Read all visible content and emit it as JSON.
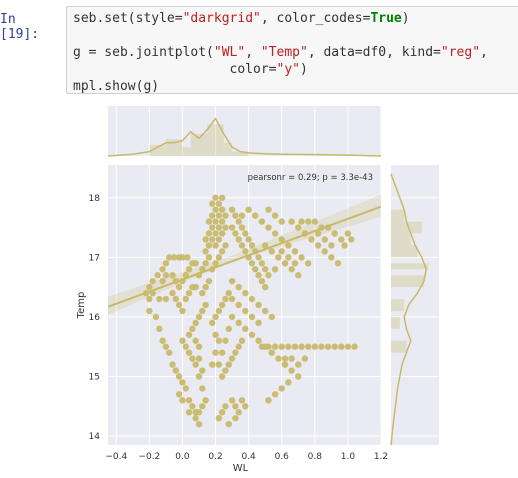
{
  "cell": {
    "prompt": "In [19]:",
    "code_lines": [
      [
        [
          "p",
          "seb.set(style="
        ],
        [
          "s",
          "\"darkgrid\""
        ],
        [
          "p",
          ", color_codes="
        ],
        [
          "k",
          "True"
        ],
        [
          "p",
          ")"
        ]
      ],
      [],
      [
        [
          "p",
          "g = seb.jointplot("
        ],
        [
          "s",
          "\"WL\""
        ],
        [
          "p",
          ", "
        ],
        [
          "s",
          "\"Temp\""
        ],
        [
          "p",
          ", data=df0, kind="
        ],
        [
          "s",
          "\"reg\""
        ],
        [
          "p",
          ","
        ]
      ],
      [
        [
          "p",
          "                    color="
        ],
        [
          "s",
          "\"y\""
        ],
        [
          "p",
          ")"
        ]
      ],
      [
        [
          "p",
          "mpl.show(g)"
        ]
      ]
    ]
  },
  "chart_data": {
    "type": "scatter",
    "kind": "reg",
    "xlabel": "WL",
    "ylabel": "Temp",
    "xlim": [
      -0.45,
      1.2
    ],
    "ylim": [
      13.85,
      18.55
    ],
    "xticks": [
      -0.4,
      -0.2,
      0.0,
      0.2,
      0.4,
      0.6,
      0.8,
      1.0,
      1.2
    ],
    "xtick_labels": [
      "−0.4",
      "−0.2",
      "0.0",
      "0.2",
      "0.4",
      "0.6",
      "0.8",
      "1.0",
      "1.2"
    ],
    "yticks": [
      14,
      15,
      16,
      17,
      18
    ],
    "ytick_labels": [
      "14",
      "15",
      "16",
      "17",
      "18"
    ],
    "annotation": "pearsonr = 0.29; p = 3.3e-43",
    "regression": {
      "x": [
        -0.45,
        1.2
      ],
      "y": [
        16.17,
        17.85
      ]
    },
    "color": "#c8b96a",
    "background": "#eaeaf2",
    "grid": true,
    "marginal_x_hist": [
      {
        "x0": -0.2,
        "x1": -0.1,
        "h": 0.25
      },
      {
        "x0": -0.1,
        "x1": 0.0,
        "h": 0.38
      },
      {
        "x0": 0.0,
        "x1": 0.05,
        "h": 0.2
      },
      {
        "x0": 0.05,
        "x1": 0.15,
        "h": 0.5
      },
      {
        "x0": 0.15,
        "x1": 0.25,
        "h": 0.72
      },
      {
        "x0": 0.25,
        "x1": 0.3,
        "h": 0.3
      },
      {
        "x0": 0.3,
        "x1": 0.4,
        "h": 0.1
      }
    ],
    "marginal_x_kde": {
      "x": [
        -0.45,
        -0.3,
        -0.2,
        -0.15,
        -0.1,
        -0.05,
        0.0,
        0.05,
        0.1,
        0.15,
        0.2,
        0.25,
        0.3,
        0.35,
        0.4,
        0.5,
        0.6,
        0.8,
        1.0,
        1.2
      ],
      "y": [
        0.0,
        0.04,
        0.1,
        0.2,
        0.3,
        0.3,
        0.35,
        0.55,
        0.4,
        0.6,
        0.85,
        0.5,
        0.2,
        0.1,
        0.07,
        0.05,
        0.04,
        0.03,
        0.02,
        0.0
      ]
    },
    "marginal_y_hist": [
      {
        "y0": 17.6,
        "y1": 17.8,
        "w": 0.3
      },
      {
        "y0": 17.4,
        "y1": 17.6,
        "w": 0.7
      },
      {
        "y0": 17.2,
        "y1": 17.4,
        "w": 0.45
      },
      {
        "y0": 17.0,
        "y1": 17.2,
        "w": 0.6
      },
      {
        "y0": 16.8,
        "y1": 16.9,
        "w": 0.85
      },
      {
        "y0": 16.5,
        "y1": 16.7,
        "w": 0.75
      },
      {
        "y0": 16.1,
        "y1": 16.3,
        "w": 0.3
      },
      {
        "y0": 15.8,
        "y1": 16.0,
        "w": 0.2
      },
      {
        "y0": 15.4,
        "y1": 15.6,
        "w": 0.35
      }
    ],
    "marginal_y_kde": {
      "y": [
        18.4,
        18.2,
        18.0,
        17.8,
        17.6,
        17.4,
        17.2,
        17.0,
        16.8,
        16.6,
        16.4,
        16.2,
        16.0,
        15.8,
        15.6,
        15.4,
        15.2,
        15.0,
        14.8,
        14.5,
        14.2,
        13.85
      ],
      "x": [
        0.0,
        0.1,
        0.2,
        0.3,
        0.35,
        0.45,
        0.55,
        0.7,
        0.8,
        0.75,
        0.6,
        0.4,
        0.3,
        0.35,
        0.45,
        0.35,
        0.25,
        0.2,
        0.15,
        0.1,
        0.05,
        0.0
      ]
    },
    "points": [
      [
        -0.22,
        16.4
      ],
      [
        -0.2,
        16.5
      ],
      [
        -0.18,
        16.6
      ],
      [
        -0.15,
        16.7
      ],
      [
        -0.12,
        16.8
      ],
      [
        -0.1,
        16.9
      ],
      [
        -0.08,
        17.0
      ],
      [
        -0.05,
        17.0
      ],
      [
        -0.02,
        17.0
      ],
      [
        0.0,
        17.0
      ],
      [
        0.03,
        17.0
      ],
      [
        -0.2,
        16.3
      ],
      [
        -0.18,
        16.4
      ],
      [
        -0.14,
        16.3
      ],
      [
        -0.1,
        16.3
      ],
      [
        -0.06,
        16.4
      ],
      [
        -0.02,
        16.5
      ],
      [
        0.0,
        16.6
      ],
      [
        0.02,
        16.7
      ],
      [
        0.04,
        16.8
      ],
      [
        0.06,
        16.9
      ],
      [
        0.08,
        16.9
      ],
      [
        -0.12,
        16.6
      ],
      [
        -0.1,
        16.7
      ],
      [
        -0.06,
        16.7
      ],
      [
        -0.04,
        16.6
      ],
      [
        -0.04,
        16.3
      ],
      [
        -0.02,
        16.2
      ],
      [
        0.0,
        16.1
      ],
      [
        0.02,
        16.3
      ],
      [
        0.04,
        16.4
      ],
      [
        0.06,
        16.5
      ],
      [
        0.08,
        16.5
      ],
      [
        -0.2,
        16.1
      ],
      [
        -0.16,
        16.0
      ],
      [
        -0.14,
        15.8
      ],
      [
        -0.12,
        15.6
      ],
      [
        -0.1,
        15.5
      ],
      [
        -0.08,
        15.4
      ],
      [
        -0.06,
        15.2
      ],
      [
        -0.04,
        15.1
      ],
      [
        -0.02,
        15.0
      ],
      [
        0.0,
        14.9
      ],
      [
        0.02,
        14.8
      ],
      [
        0.04,
        14.6
      ],
      [
        0.06,
        14.5
      ],
      [
        0.08,
        14.4
      ],
      [
        0.1,
        14.2
      ],
      [
        -0.02,
        14.7
      ],
      [
        0.0,
        14.6
      ],
      [
        0.04,
        14.4
      ],
      [
        0.08,
        14.3
      ],
      [
        0.1,
        14.4
      ],
      [
        0.12,
        14.5
      ],
      [
        0.14,
        14.6
      ],
      [
        0.12,
        14.8
      ],
      [
        0.12,
        15.1
      ],
      [
        0.1,
        15.3
      ],
      [
        0.1,
        15.5
      ],
      [
        0.08,
        15.6
      ],
      [
        0.0,
        15.6
      ],
      [
        0.02,
        15.5
      ],
      [
        0.04,
        15.4
      ],
      [
        0.06,
        15.3
      ],
      [
        0.08,
        15.2
      ],
      [
        0.1,
        15.0
      ],
      [
        0.04,
        15.7
      ],
      [
        0.06,
        15.8
      ],
      [
        0.08,
        15.9
      ],
      [
        0.1,
        16.0
      ],
      [
        0.12,
        16.1
      ],
      [
        0.14,
        16.2
      ],
      [
        0.12,
        16.4
      ],
      [
        0.14,
        16.5
      ],
      [
        0.16,
        16.6
      ],
      [
        0.18,
        16.8
      ],
      [
        0.2,
        16.9
      ],
      [
        0.22,
        17.0
      ],
      [
        0.24,
        17.1
      ],
      [
        0.26,
        17.2
      ],
      [
        0.16,
        17.0
      ],
      [
        0.14,
        16.9
      ],
      [
        0.12,
        16.8
      ],
      [
        0.1,
        16.7
      ],
      [
        0.14,
        17.3
      ],
      [
        0.16,
        17.4
      ],
      [
        0.18,
        17.5
      ],
      [
        0.2,
        17.6
      ],
      [
        0.22,
        17.7
      ],
      [
        0.24,
        17.8
      ],
      [
        0.16,
        17.6
      ],
      [
        0.18,
        17.7
      ],
      [
        0.2,
        17.8
      ],
      [
        0.22,
        17.5
      ],
      [
        0.2,
        17.4
      ],
      [
        0.18,
        17.3
      ],
      [
        0.16,
        17.2
      ],
      [
        0.14,
        17.1
      ],
      [
        0.2,
        17.2
      ],
      [
        0.22,
        17.3
      ],
      [
        0.24,
        17.4
      ],
      [
        0.26,
        17.5
      ],
      [
        0.24,
        17.6
      ],
      [
        0.26,
        17.7
      ],
      [
        0.22,
        17.9
      ],
      [
        0.18,
        17.9
      ],
      [
        0.2,
        18.0
      ],
      [
        0.24,
        18.0
      ],
      [
        0.3,
        17.8
      ],
      [
        0.32,
        17.7
      ],
      [
        0.34,
        17.6
      ],
      [
        0.36,
        17.5
      ],
      [
        0.38,
        17.4
      ],
      [
        0.4,
        17.3
      ],
      [
        0.42,
        17.2
      ],
      [
        0.44,
        17.1
      ],
      [
        0.46,
        17.0
      ],
      [
        0.48,
        16.9
      ],
      [
        0.5,
        16.8
      ],
      [
        0.3,
        17.5
      ],
      [
        0.32,
        17.4
      ],
      [
        0.34,
        17.3
      ],
      [
        0.36,
        17.2
      ],
      [
        0.38,
        17.1
      ],
      [
        0.4,
        17.0
      ],
      [
        0.42,
        16.9
      ],
      [
        0.44,
        16.8
      ],
      [
        0.46,
        16.7
      ],
      [
        0.48,
        16.6
      ],
      [
        0.5,
        16.5
      ],
      [
        0.36,
        17.7
      ],
      [
        0.4,
        17.8
      ],
      [
        0.44,
        17.7
      ],
      [
        0.48,
        17.6
      ],
      [
        0.52,
        17.5
      ],
      [
        0.56,
        17.4
      ],
      [
        0.6,
        17.3
      ],
      [
        0.64,
        17.2
      ],
      [
        0.68,
        17.1
      ],
      [
        0.72,
        17.0
      ],
      [
        0.76,
        16.9
      ],
      [
        0.52,
        17.8
      ],
      [
        0.56,
        17.7
      ],
      [
        0.6,
        17.6
      ],
      [
        0.66,
        17.6
      ],
      [
        0.7,
        17.5
      ],
      [
        0.74,
        17.4
      ],
      [
        0.78,
        17.3
      ],
      [
        0.82,
        17.2
      ],
      [
        0.86,
        17.1
      ],
      [
        0.9,
        17.0
      ],
      [
        0.94,
        16.9
      ],
      [
        0.72,
        17.6
      ],
      [
        0.76,
        17.6
      ],
      [
        0.8,
        17.6
      ],
      [
        0.84,
        17.5
      ],
      [
        0.88,
        17.5
      ],
      [
        0.92,
        17.4
      ],
      [
        0.96,
        17.3
      ],
      [
        0.82,
        17.4
      ],
      [
        0.86,
        17.3
      ],
      [
        0.9,
        17.2
      ],
      [
        0.5,
        17.2
      ],
      [
        0.54,
        17.1
      ],
      [
        0.58,
        17.0
      ],
      [
        0.62,
        16.9
      ],
      [
        0.66,
        16.8
      ],
      [
        0.7,
        16.7
      ],
      [
        0.6,
        17.1
      ],
      [
        0.64,
        17.0
      ],
      [
        0.68,
        16.9
      ],
      [
        0.56,
        16.8
      ],
      [
        0.52,
        16.7
      ],
      [
        0.3,
        16.6
      ],
      [
        0.34,
        16.5
      ],
      [
        0.38,
        16.4
      ],
      [
        0.42,
        16.3
      ],
      [
        0.46,
        16.2
      ],
      [
        0.5,
        16.1
      ],
      [
        0.54,
        16.0
      ],
      [
        0.3,
        16.3
      ],
      [
        0.34,
        16.2
      ],
      [
        0.38,
        16.1
      ],
      [
        0.42,
        16.0
      ],
      [
        0.46,
        15.9
      ],
      [
        0.3,
        16.0
      ],
      [
        0.34,
        15.9
      ],
      [
        0.38,
        15.8
      ],
      [
        0.42,
        15.7
      ],
      [
        0.46,
        15.6
      ],
      [
        0.5,
        15.5
      ],
      [
        0.54,
        15.4
      ],
      [
        0.58,
        15.3
      ],
      [
        0.62,
        15.2
      ],
      [
        0.66,
        15.1
      ],
      [
        0.7,
        15.0
      ],
      [
        0.48,
        15.5
      ],
      [
        0.52,
        15.5
      ],
      [
        0.56,
        15.5
      ],
      [
        0.6,
        15.5
      ],
      [
        0.64,
        15.5
      ],
      [
        0.68,
        15.5
      ],
      [
        0.72,
        15.5
      ],
      [
        0.76,
        15.5
      ],
      [
        0.8,
        15.5
      ],
      [
        0.84,
        15.5
      ],
      [
        0.88,
        15.5
      ],
      [
        0.92,
        15.5
      ],
      [
        0.96,
        15.5
      ],
      [
        1.0,
        15.5
      ],
      [
        1.04,
        15.5
      ],
      [
        0.62,
        15.3
      ],
      [
        0.66,
        15.3
      ],
      [
        0.7,
        15.2
      ],
      [
        0.74,
        15.3
      ],
      [
        0.64,
        14.9
      ],
      [
        0.6,
        14.8
      ],
      [
        0.56,
        14.7
      ],
      [
        0.52,
        14.6
      ],
      [
        0.3,
        14.6
      ],
      [
        0.32,
        14.5
      ],
      [
        0.34,
        14.4
      ],
      [
        0.36,
        14.6
      ],
      [
        0.38,
        14.5
      ],
      [
        0.26,
        14.5
      ],
      [
        0.24,
        14.4
      ],
      [
        0.22,
        14.3
      ],
      [
        0.28,
        14.2
      ],
      [
        0.32,
        14.3
      ],
      [
        0.24,
        15.0
      ],
      [
        0.26,
        15.1
      ],
      [
        0.28,
        15.2
      ],
      [
        0.3,
        15.3
      ],
      [
        0.32,
        15.4
      ],
      [
        0.34,
        15.5
      ],
      [
        0.36,
        15.6
      ],
      [
        0.22,
        15.2
      ],
      [
        0.24,
        15.4
      ],
      [
        0.26,
        15.6
      ],
      [
        0.28,
        15.8
      ],
      [
        0.18,
        15.9
      ],
      [
        0.2,
        16.0
      ],
      [
        0.22,
        16.1
      ],
      [
        0.24,
        16.2
      ],
      [
        0.26,
        16.3
      ],
      [
        0.28,
        16.4
      ],
      [
        0.2,
        15.7
      ],
      [
        0.22,
        15.6
      ],
      [
        0.2,
        15.4
      ],
      [
        0.18,
        15.2
      ],
      [
        1.02,
        17.3
      ],
      [
        1.0,
        17.4
      ],
      [
        0.98,
        17.2
      ]
    ]
  }
}
